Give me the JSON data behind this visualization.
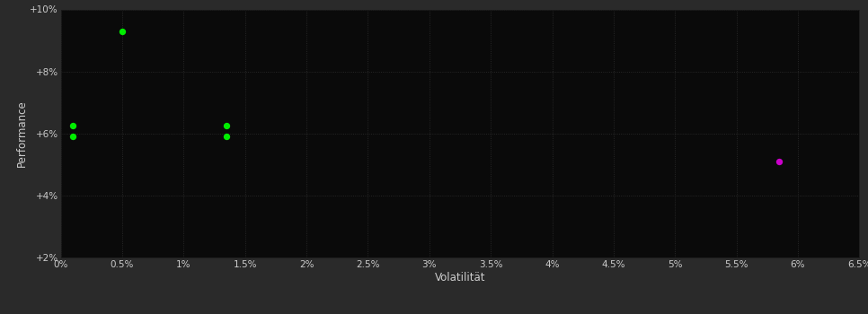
{
  "background_color": "#2a2a2a",
  "plot_bg_color": "#0a0a0a",
  "text_color": "#cccccc",
  "xlabel": "Volatilität",
  "ylabel": "Performance",
  "xlim": [
    0.0,
    0.065
  ],
  "ylim": [
    0.02,
    0.1
  ],
  "xticks": [
    0.0,
    0.005,
    0.01,
    0.015,
    0.02,
    0.025,
    0.03,
    0.035,
    0.04,
    0.045,
    0.05,
    0.055,
    0.06,
    0.065
  ],
  "xtick_labels": [
    "0%",
    "0.5%",
    "1%",
    "1.5%",
    "2%",
    "2.5%",
    "3%",
    "3.5%",
    "4%",
    "4.5%",
    "5%",
    "5.5%",
    "6%",
    "6.5%"
  ],
  "yticks": [
    0.02,
    0.04,
    0.06,
    0.08,
    0.1
  ],
  "ytick_labels": [
    "+2%",
    "+4%",
    "+6%",
    "+8%",
    "+10%"
  ],
  "green_points": [
    [
      0.005,
      0.093
    ],
    [
      0.001,
      0.0625
    ],
    [
      0.001,
      0.059
    ],
    [
      0.0135,
      0.0625
    ],
    [
      0.0135,
      0.059
    ]
  ],
  "magenta_points": [
    [
      0.0585,
      0.051
    ]
  ],
  "green_color": "#00ee00",
  "magenta_color": "#cc00cc",
  "marker_size": 28
}
